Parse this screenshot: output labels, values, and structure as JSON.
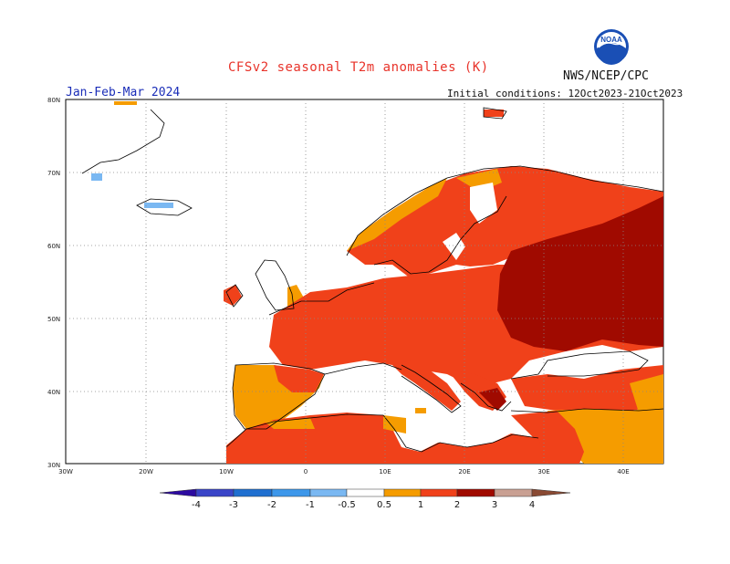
{
  "header": {
    "title": "CFSv2 seasonal T2m anomalies (K)",
    "period": "Jan-Feb-Mar 2024",
    "initial_conditions": "Initial conditions: 12Oct2023-21Oct2023",
    "agency": "NWS/NCEP/CPC",
    "logo_text": "NOAA"
  },
  "map": {
    "lat_labels": [
      "80N",
      "70N",
      "60N",
      "50N",
      "40N",
      "30N"
    ],
    "lon_labels": [
      "30W",
      "20W",
      "10W",
      "0",
      "10E",
      "20E",
      "30E",
      "40E"
    ],
    "region": "Europe",
    "land_color": "#ffffff",
    "ocean_color": "#ffffff",
    "grid": "dotted"
  },
  "colorbar": {
    "ticks": [
      "-4",
      "-3",
      "-2",
      "-1",
      "-0.5",
      "0.5",
      "1",
      "2",
      "3",
      "4"
    ],
    "bins": [
      {
        "range": "<-4",
        "color": "#2c0aa0"
      },
      {
        "range": "-4 to -3",
        "color": "#3a45c8"
      },
      {
        "range": "-3 to -2",
        "color": "#1f6fd0"
      },
      {
        "range": "-2 to -1",
        "color": "#3d97ea"
      },
      {
        "range": "-1 to -0.5",
        "color": "#7ab8f2"
      },
      {
        "range": "-0.5 to 0.5",
        "color": "#ffffff"
      },
      {
        "range": "0.5 to 1",
        "color": "#f59c00"
      },
      {
        "range": "1 to 2",
        "color": "#f0411a"
      },
      {
        "range": "2 to 3",
        "color": "#a00a00"
      },
      {
        "range": "3 to 4",
        "color": "#c9a093"
      },
      {
        "range": ">4",
        "color": "#8a4a33"
      }
    ]
  }
}
